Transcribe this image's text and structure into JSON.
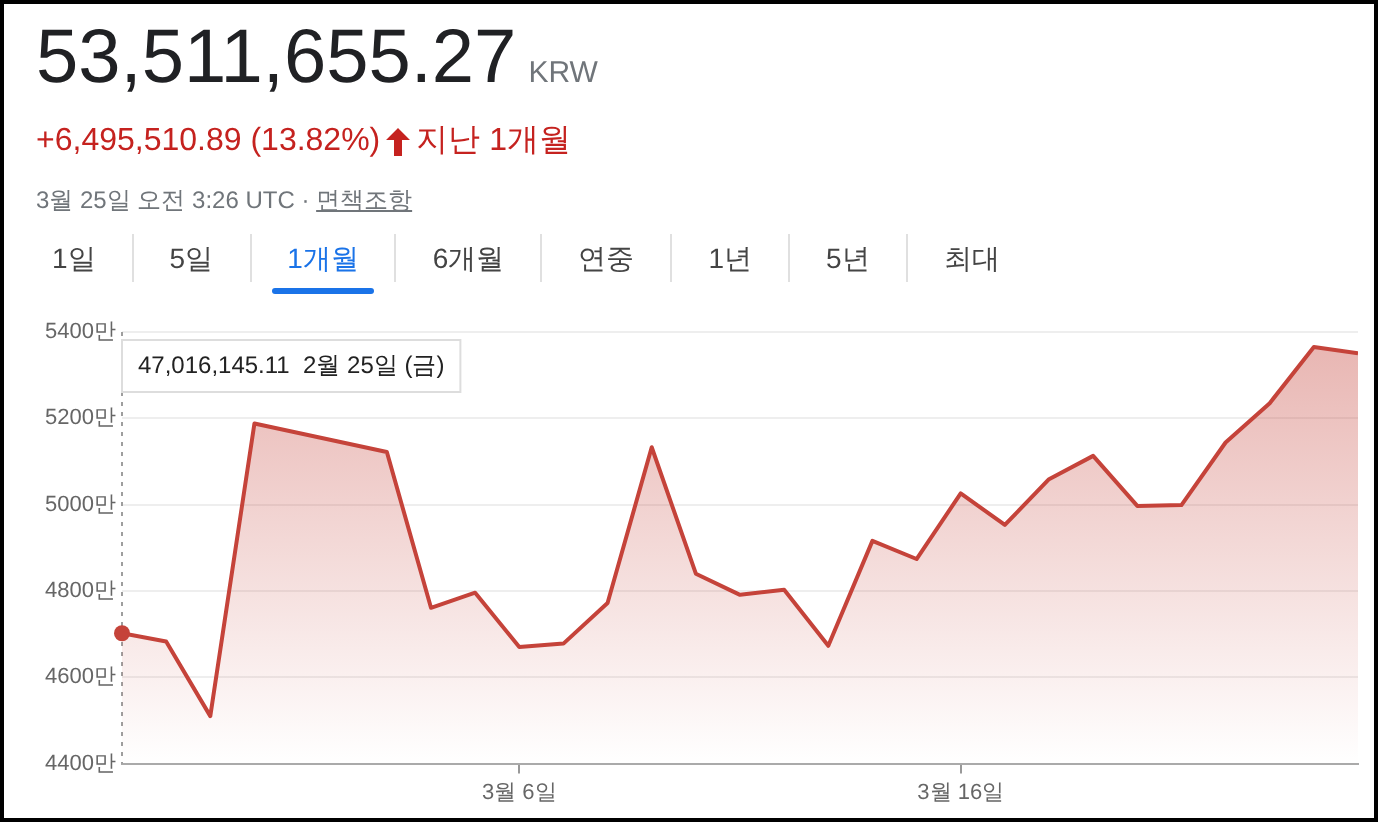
{
  "chart_data": {
    "type": "area",
    "title": "53,511,655.27",
    "annotations": [
      "KRW",
      "+6,495,510.89 (13.82%)",
      "지난 1개월",
      "3월 25일 오전 3:26 UTC ·",
      "면책조항",
      "1일",
      "5일",
      "1개월",
      "6개월",
      "연중",
      "1년",
      "5년",
      "최대",
      "47,016,145.11  2월 25일 (금)"
    ],
    "x": [
      "--02-25",
      "--02-26",
      "--02-27",
      "--02-28",
      "--03-01",
      "--03-02",
      "--03-03",
      "--03-04",
      "--03-05",
      "--03-06",
      "--03-07",
      "--03-08",
      "--03-09",
      "--03-10",
      "--03-11",
      "--03-12",
      "--03-13",
      "--03-14",
      "--03-15",
      "--03-16",
      "--03-17",
      "--03-18",
      "--03-19",
      "--03-20",
      "--03-21",
      "--03-22",
      "--03-23",
      "--03-24",
      "--03-25"
    ],
    "series": [
      {
        "color": "#c5433a",
        "values": [
          4702,
          4683,
          4510,
          5188,
          null,
          null,
          5122,
          4761,
          4796,
          4670,
          4678,
          4772,
          5133,
          4840,
          4791,
          4803,
          4673,
          4916,
          4874,
          5026,
          4953,
          5059,
          5113,
          4997,
          4999,
          5144,
          5235,
          5365,
          5351
        ]
      }
    ],
    "xlim": [
      "--02-25",
      "--03-25"
    ],
    "xticks": [
      {
        "value": "--03-06",
        "label": "3월 6일"
      },
      {
        "value": "--03-16",
        "label": "3월 16일"
      }
    ],
    "ylim": [
      4400,
      5400
    ],
    "yticks": [
      {
        "value": 4400,
        "label": "4400만"
      },
      {
        "value": 4600,
        "label": "4600만"
      },
      {
        "value": 4800,
        "label": "4800만"
      },
      {
        "value": 5000,
        "label": "5000만"
      },
      {
        "value": 5200,
        "label": "5200만"
      },
      {
        "value": 5400,
        "label": "5400만"
      }
    ],
    "grid": "y",
    "legend": false,
    "ref_lines": [
      {
        "axis": "x",
        "value": "--02-25",
        "color": "#9e9e9e",
        "line_style": "dotted"
      }
    ]
  }
}
